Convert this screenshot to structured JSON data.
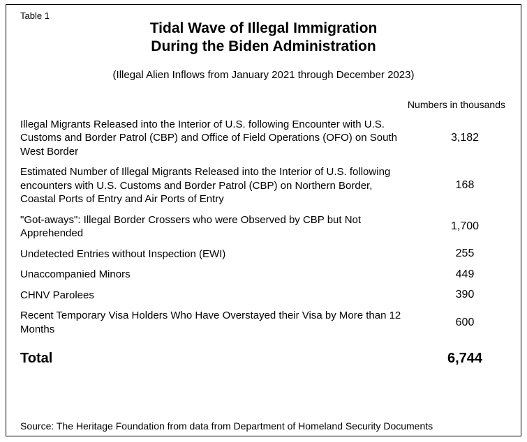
{
  "table_label": "Table 1",
  "title_line1": "Tidal Wave of Illegal Immigration",
  "title_line2": "During the Biden Administration",
  "subtitle": "(Illegal Alien Inflows from January 2021 through December 2023)",
  "column_header": "Numbers in thousands",
  "rows": [
    {
      "label": "Illegal Migrants Released into the Interior of U.S. following Encounter with U.S. Customs and Border Patrol (CBP) and Office of Field Operations (OFO) on South West Border",
      "value": "3,182"
    },
    {
      "label": "Estimated Number of Illegal Migrants Released into the Interior of U.S. following encounters with U.S. Customs and Border Patrol (CBP) on Northern Border, Coastal Ports of Entry and Air Ports of Entry",
      "value": "168"
    },
    {
      "label": "\"Got-aways\": Illegal Border Crossers who were Observed by CBP but Not Apprehended",
      "value": "1,700"
    },
    {
      "label": "Undetected Entries without Inspection (EWI)",
      "value": "255"
    },
    {
      "label": "Unaccompanied Minors",
      "value": "449"
    },
    {
      "label": "CHNV Parolees",
      "value": "390"
    },
    {
      "label": "Recent Temporary Visa Holders Who Have Overstayed their Visa by More than 12 Months",
      "value": "600"
    }
  ],
  "total_label": "Total",
  "total_value": "6,744",
  "source": "Source: The Heritage Foundation from data from Department of Homeland Security Documents",
  "style": {
    "border_color": "#000000",
    "background_color": "#ffffff",
    "text_color": "#000000",
    "title_fontsize_pt": 16,
    "subtitle_fontsize_pt": 11,
    "body_fontsize_pt": 11,
    "total_fontsize_pt": 15,
    "font_family": "Arial"
  }
}
